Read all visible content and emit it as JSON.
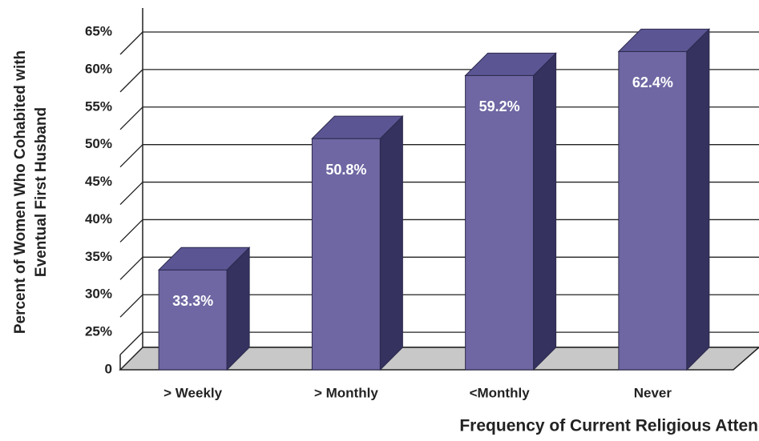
{
  "chart_data": {
    "type": "bar3d",
    "ylabel": [
      "Percent of Women Who Cohabited with",
      "Eventual First Husband"
    ],
    "xlabel": "Frequency of Current Religious Attendance",
    "categories": [
      "> Weekly",
      "> Monthly",
      "<Monthly",
      "Never"
    ],
    "values": [
      33.3,
      50.8,
      59.2,
      62.4
    ],
    "value_labels": [
      "33.3%",
      "50.8%",
      "59.2%",
      "62.4%"
    ],
    "color": "#6e67a3",
    "ylim": [
      0,
      65
    ],
    "yticks": [
      0,
      {
        "value": 25,
        "label": "25%"
      },
      {
        "value": 30,
        "label": "30%"
      },
      {
        "value": 35,
        "label": "35%"
      },
      {
        "value": 40,
        "label": "40%"
      },
      {
        "value": 45,
        "label": "45%"
      },
      {
        "value": 50,
        "label": "50%"
      },
      {
        "value": 55,
        "label": "55%"
      },
      {
        "value": 60,
        "label": "60%"
      },
      {
        "value": 65,
        "label": "65%"
      }
    ],
    "grid": true
  }
}
